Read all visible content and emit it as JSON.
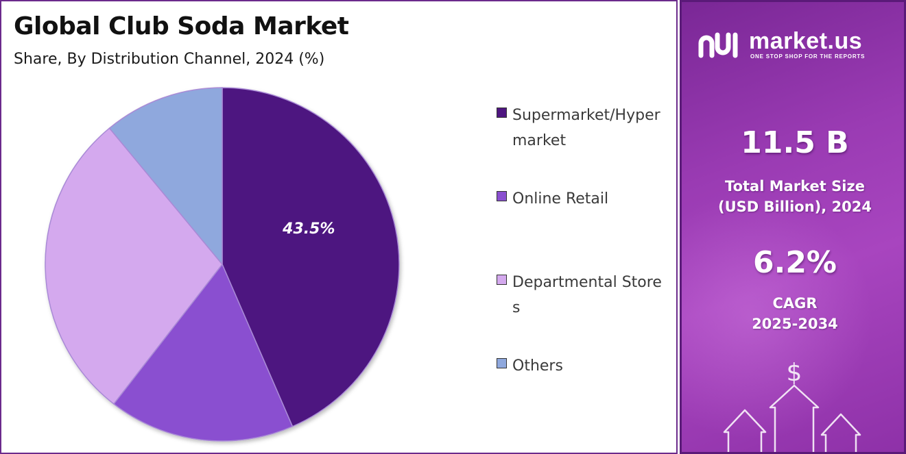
{
  "chart_data": {
    "type": "pie",
    "title": "Global Club Soda Market",
    "subtitle": "Share, By Distribution Channel, 2024 (%)",
    "categories": [
      "Supermarket/Hypermarket",
      "Online Retail",
      "Departmental Stores",
      "Others"
    ],
    "values": [
      43.5,
      17.0,
      28.5,
      11.0
    ],
    "colors": [
      "#4e1680",
      "#8a4fd0",
      "#d4a9ee",
      "#8fa8dd"
    ],
    "data_labels": [
      "43.5%",
      "",
      "",
      ""
    ],
    "start_angle_deg": 0,
    "direction": "clockwise",
    "legend_position": "right"
  },
  "legend": {
    "items": [
      {
        "label": "Supermarket/Hypermarket",
        "color": "#4e1680"
      },
      {
        "label": "Online Retail",
        "color": "#8a4fd0"
      },
      {
        "label": "Departmental Stores",
        "color": "#d4a9ee"
      },
      {
        "label": "Others",
        "color": "#8fa8dd"
      }
    ]
  },
  "sidebar": {
    "brand_name": "market.us",
    "brand_tagline": "ONE STOP SHOP FOR THE REPORTS",
    "market_size_value": "11.5 B",
    "market_size_label_1": "Total Market Size",
    "market_size_label_2": "(USD Billion), 2024",
    "cagr_value": "6.2%",
    "cagr_label_1": "CAGR",
    "cagr_label_2": "2025-2034",
    "currency_symbol": "$"
  }
}
